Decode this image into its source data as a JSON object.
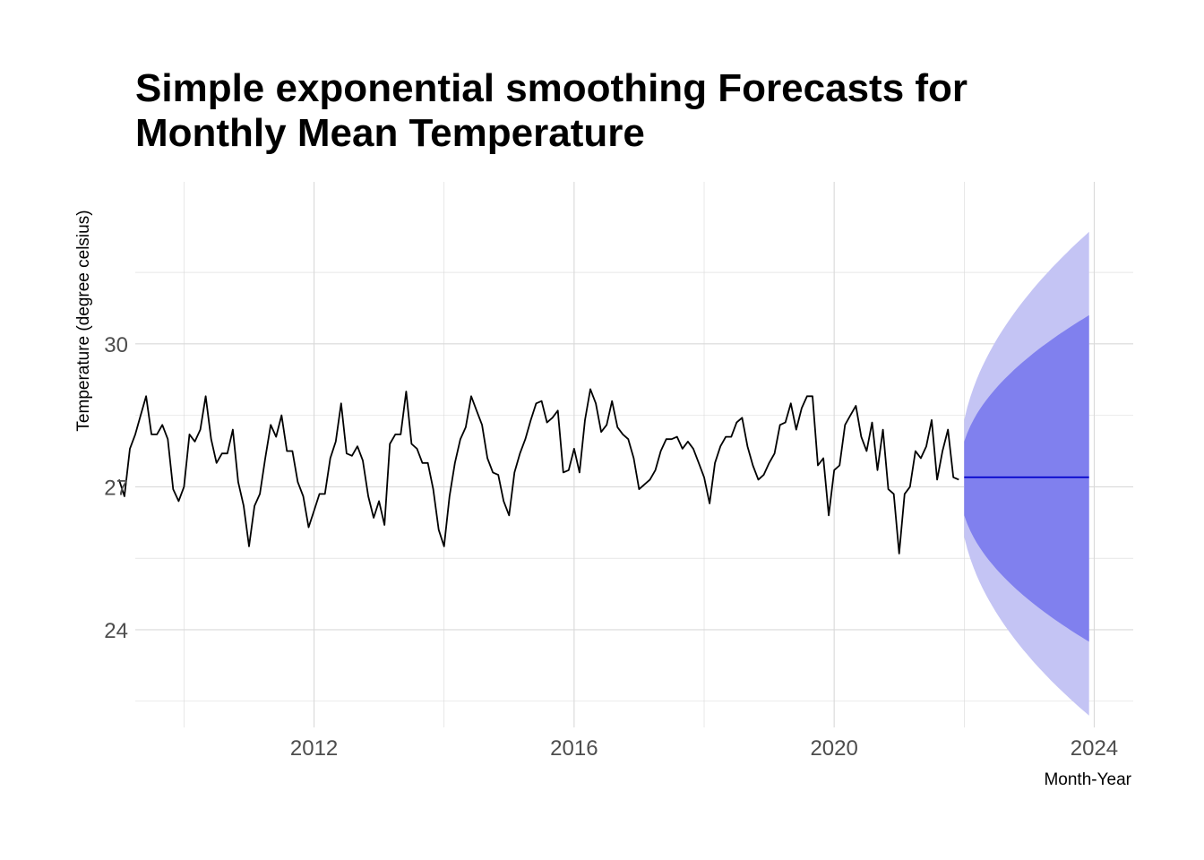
{
  "chart_data": {
    "type": "line",
    "title_lines": [
      "Simple exponential smoothing Forecasts for",
      "Monthly Mean Temperature"
    ],
    "xlabel": "Month-Year",
    "ylabel": "Temperature (degree celsius)",
    "xlim": [
      2009.25,
      2024.6
    ],
    "ylim": [
      21.95,
      33.4
    ],
    "x_ticks": [
      2012,
      2016,
      2020,
      2024
    ],
    "x_tick_labels": [
      "2012",
      "2016",
      "2020",
      "2024"
    ],
    "y_ticks": [
      24,
      27,
      30
    ],
    "y_tick_labels": [
      "24",
      "27",
      "30"
    ],
    "grid": true,
    "legend": "none",
    "colors": {
      "observed": "#000000",
      "forecast": "#0000cc",
      "ci80": "#8080ee",
      "ci95": "#c4c4f4",
      "grid": "#d9d9d9"
    },
    "series": [
      {
        "x_start": 2009.0,
        "x_step": 0.0833333,
        "values": [
          27.15,
          26.8,
          27.8,
          28.1,
          28.5,
          28.9,
          28.1,
          28.1,
          28.3,
          28.0,
          26.95,
          26.7,
          27.0,
          28.1,
          27.95,
          28.2,
          28.9,
          28.0,
          27.5,
          27.7,
          27.7,
          28.2,
          27.1,
          26.6,
          25.75,
          26.6,
          26.85,
          27.6,
          28.3,
          28.05,
          28.5,
          27.75,
          27.75,
          27.1,
          26.8,
          26.15,
          26.5,
          26.85,
          26.85,
          27.6,
          27.95,
          28.75,
          27.7,
          27.65,
          27.85,
          27.55,
          26.8,
          26.35,
          26.7,
          26.2,
          27.9,
          28.1,
          28.1,
          29.0,
          27.9,
          27.8,
          27.5,
          27.5,
          26.95,
          26.1,
          25.75,
          26.8,
          27.5,
          28.0,
          28.25,
          28.9,
          28.6,
          28.3,
          27.6,
          27.3,
          27.25,
          26.7,
          26.4,
          27.3,
          27.7,
          28.0,
          28.4,
          28.75,
          28.8,
          28.35,
          28.45,
          28.6,
          27.3,
          27.35,
          27.8,
          27.3,
          28.4,
          29.05,
          28.75,
          28.15,
          28.3,
          28.8,
          28.25,
          28.1,
          28.0,
          27.6,
          26.95,
          27.05,
          27.15,
          27.35,
          27.75,
          28.0,
          28.0,
          28.05,
          27.8,
          27.95,
          27.8,
          27.5,
          27.2,
          26.65,
          27.5,
          27.85,
          28.05,
          28.05,
          28.35,
          28.45,
          27.85,
          27.45,
          27.15,
          27.25,
          27.5,
          27.7,
          28.3,
          28.35,
          28.75,
          28.2,
          28.65,
          28.9,
          28.9,
          27.45,
          27.6,
          26.4,
          27.35,
          27.45,
          28.3,
          28.5,
          28.7,
          28.05,
          27.75,
          28.35,
          27.35,
          28.2,
          26.95,
          26.85,
          25.6,
          26.85,
          27.0,
          27.75,
          27.6,
          27.85,
          28.4,
          27.15,
          27.75,
          28.2,
          27.2,
          27.15
        ]
      }
    ],
    "forecast": {
      "x_start": 2022.0,
      "x_end": 2023.92,
      "point": 27.2,
      "lo80_start": 26.4,
      "hi80_start": 27.95,
      "lo80_end": 23.75,
      "hi80_end": 30.6,
      "lo95_start": 25.95,
      "hi95_start": 28.4,
      "lo95_end": 22.2,
      "hi95_end": 32.35
    }
  }
}
